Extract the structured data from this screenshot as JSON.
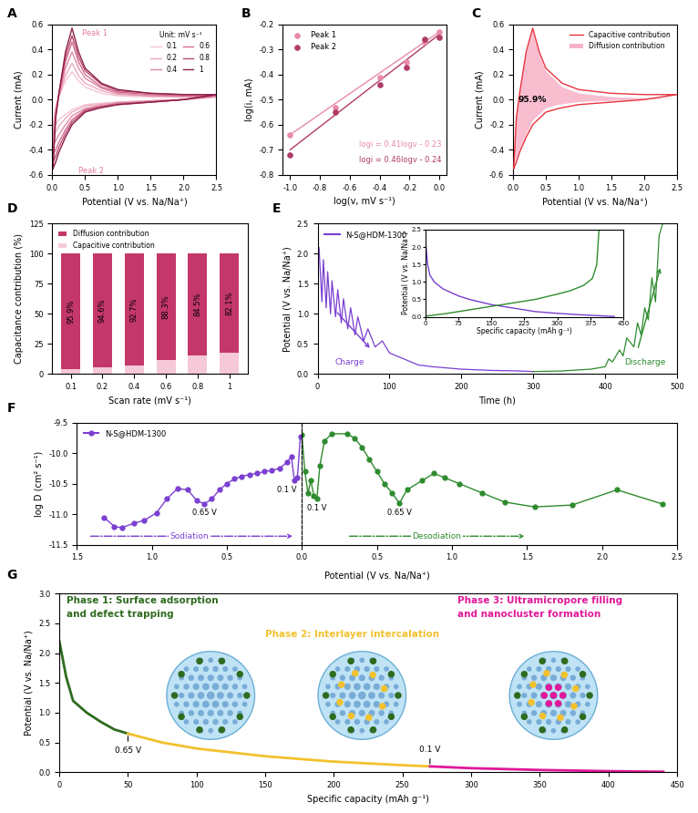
{
  "chart_data": [
    {
      "panel": "A",
      "type": "line",
      "xlabel": "Potential (V vs. Na/Na⁺)",
      "ylabel": "Current (mA)",
      "xlim": [
        0.0,
        2.5
      ],
      "xticks": [
        0.0,
        0.5,
        1.0,
        1.5,
        2.0,
        2.5
      ],
      "ylim": [
        -0.6,
        0.6
      ],
      "yticks": [
        -0.6,
        -0.4,
        -0.2,
        0.0,
        0.2,
        0.4,
        0.6
      ],
      "legend": "upper right",
      "legend_title": "Unit: mV s⁻¹",
      "x": [
        0.01,
        0.05,
        0.1,
        0.2,
        0.3,
        0.4,
        0.5,
        0.75,
        1.0,
        1.5,
        2.0,
        2.5,
        2.0,
        1.5,
        1.0,
        0.7,
        0.5,
        0.3,
        0.2,
        0.1,
        0.05,
        0.01
      ],
      "series": [
        {
          "name": "0.1",
          "color": "#f4c6d4",
          "values": [
            -0.21,
            -0.06,
            0.02,
            0.15,
            0.22,
            0.15,
            0.1,
            0.05,
            0.03,
            0.02,
            0.02,
            0.02,
            0.0,
            -0.01,
            -0.02,
            -0.03,
            -0.04,
            -0.08,
            -0.12,
            -0.16,
            -0.2,
            -0.21
          ]
        },
        {
          "name": "0.2",
          "color": "#eba8bd",
          "values": [
            -0.28,
            -0.08,
            0.03,
            0.19,
            0.29,
            0.19,
            0.13,
            0.07,
            0.04,
            0.03,
            0.02,
            0.02,
            0.0,
            -0.01,
            -0.02,
            -0.04,
            -0.05,
            -0.1,
            -0.15,
            -0.21,
            -0.26,
            -0.28
          ]
        },
        {
          "name": "0.4",
          "color": "#e08aa6",
          "values": [
            -0.36,
            -0.1,
            0.03,
            0.25,
            0.38,
            0.25,
            0.17,
            0.09,
            0.05,
            0.03,
            0.03,
            0.03,
            0.0,
            -0.01,
            -0.03,
            -0.05,
            -0.07,
            -0.13,
            -0.2,
            -0.28,
            -0.33,
            -0.36
          ]
        },
        {
          "name": "0.6",
          "color": "#d46b8f",
          "values": [
            -0.44,
            -0.12,
            0.04,
            0.3,
            0.46,
            0.3,
            0.2,
            0.1,
            0.06,
            0.04,
            0.03,
            0.03,
            0.0,
            -0.02,
            -0.03,
            -0.06,
            -0.08,
            -0.16,
            -0.24,
            -0.34,
            -0.4,
            -0.44
          ]
        },
        {
          "name": "0.8",
          "color": "#b84a72",
          "values": [
            -0.5,
            -0.14,
            0.05,
            0.34,
            0.51,
            0.34,
            0.23,
            0.12,
            0.07,
            0.05,
            0.04,
            0.04,
            0.0,
            -0.02,
            -0.04,
            -0.06,
            -0.09,
            -0.18,
            -0.27,
            -0.38,
            -0.45,
            -0.5
          ]
        },
        {
          "name": "1",
          "color": "#8b1e4b",
          "values": [
            -0.55,
            -0.15,
            0.05,
            0.38,
            0.57,
            0.38,
            0.25,
            0.13,
            0.08,
            0.05,
            0.04,
            0.04,
            0.0,
            -0.02,
            -0.04,
            -0.07,
            -0.1,
            -0.2,
            -0.3,
            -0.42,
            -0.5,
            -0.55
          ]
        }
      ],
      "annotations": [
        {
          "text": "Peak 1",
          "x": 0.3,
          "y": 0.57
        },
        {
          "text": "Peak 2",
          "x": 0.01,
          "y": -0.55
        }
      ]
    },
    {
      "panel": "B",
      "type": "scatter",
      "xlabel": "log(v, mV s⁻¹)",
      "ylabel": "log(i, mA)",
      "xlim": [
        -1.05,
        0.05
      ],
      "xticks": [
        -1.0,
        -0.8,
        -0.6,
        -0.4,
        -0.2,
        0.0
      ],
      "ylim": [
        -0.8,
        -0.2
      ],
      "yticks": [
        -0.8,
        -0.7,
        -0.6,
        -0.5,
        -0.4,
        -0.3,
        -0.2
      ],
      "legend": "upper left",
      "marker": "o",
      "x": [
        -1.0,
        -0.7,
        -0.4,
        -0.22,
        -0.1,
        0.0
      ],
      "series": [
        {
          "name": "Peak 1",
          "color": "#e88aa8",
          "values": [
            -0.64,
            -0.53,
            -0.41,
            -0.35,
            -0.27,
            -0.23
          ]
        },
        {
          "name": "Peak 2",
          "color": "#b03a68",
          "values": [
            -0.72,
            -0.55,
            -0.44,
            -0.37,
            -0.26,
            -0.25
          ]
        }
      ],
      "fits": [
        {
          "label": "logi = 0.41logv - 0.23",
          "color": "#e88aa8",
          "x": [
            -1.0,
            0.0
          ],
          "values": [
            -0.64,
            -0.23
          ]
        },
        {
          "label": "logi = 0.46logv - 0.24",
          "color": "#b03a68",
          "x": [
            -1.0,
            0.0
          ],
          "values": [
            -0.7,
            -0.24
          ]
        }
      ]
    },
    {
      "panel": "C",
      "type": "line",
      "xlabel": "Potential (V vs. Na/Na⁺)",
      "ylabel": "Current (mA)",
      "xlim": [
        0.0,
        2.5
      ],
      "xticks": [
        0.0,
        0.5,
        1.0,
        1.5,
        2.0,
        2.5
      ],
      "ylim": [
        -0.6,
        0.6
      ],
      "yticks": [
        -0.6,
        -0.4,
        -0.2,
        0.0,
        0.2,
        0.4,
        0.6
      ],
      "legend": "upper right",
      "area_label": "95.9%",
      "x": [
        0.01,
        0.05,
        0.1,
        0.2,
        0.3,
        0.4,
        0.5,
        0.75,
        1.0,
        1.5,
        2.0,
        2.5,
        2.0,
        1.5,
        1.0,
        0.7,
        0.5,
        0.3,
        0.2,
        0.1,
        0.05,
        0.01
      ],
      "series": [
        {
          "name": "Capacitive contribution",
          "type": "line",
          "color": "#e8323c",
          "values": [
            -0.55,
            -0.15,
            0.05,
            0.38,
            0.57,
            0.38,
            0.25,
            0.13,
            0.08,
            0.05,
            0.04,
            0.04,
            0.0,
            -0.02,
            -0.04,
            -0.07,
            -0.1,
            -0.2,
            -0.3,
            -0.42,
            -0.5,
            -0.55
          ]
        },
        {
          "name": "Diffusion contribution",
          "type": "area",
          "color": "#f7b3c8",
          "values": [
            -0.52,
            -0.13,
            0.04,
            0.36,
            0.55,
            0.36,
            0.23,
            0.1,
            0.05,
            0.02,
            0.01,
            0.01,
            0.0,
            -0.01,
            -0.02,
            -0.04,
            -0.07,
            -0.17,
            -0.28,
            -0.4,
            -0.48,
            -0.52
          ]
        }
      ]
    },
    {
      "panel": "D",
      "type": "bar",
      "stacked": true,
      "data_labels": true,
      "xlabel": "Scan rate (mV s⁻¹)",
      "ylabel": "Capacitance contribution (%)",
      "ylim": [
        0,
        125
      ],
      "yticks": [
        0,
        25,
        50,
        75,
        100,
        125
      ],
      "legend": "upper left",
      "categories": [
        "0.1",
        "0.2",
        "0.4",
        "0.6",
        "0.8",
        "1"
      ],
      "series": [
        {
          "name": "Capacitive contribution",
          "color": "#f6c9d8",
          "values": [
            4.1,
            5.4,
            7.3,
            11.7,
            15.5,
            17.9
          ]
        },
        {
          "name": "Diffusion contribution",
          "color": "#c4376a",
          "values": [
            95.9,
            94.6,
            92.7,
            88.3,
            84.5,
            82.1
          ],
          "value_labels": [
            "95.9%",
            "94.6%",
            "92.7%",
            "88.3%",
            "84.5%",
            "82.1%"
          ]
        }
      ]
    },
    {
      "panel": "E",
      "type": "line",
      "xlabel": "Time (h)",
      "ylabel": "Potential (V vs. Na/Na⁺)",
      "xlim": [
        0,
        500
      ],
      "xticks": [
        0,
        100,
        200,
        300,
        400,
        500
      ],
      "ylim": [
        0.0,
        2.5
      ],
      "yticks": [
        0.0,
        0.5,
        1.0,
        1.5,
        2.0,
        2.5
      ],
      "legend": "upper left",
      "legend_label": "N-S@HDM-1300",
      "series": [
        {
          "name": "Charge",
          "color": "#7a3fd1",
          "x": [
            2,
            6,
            8,
            12,
            14,
            18,
            20,
            25,
            28,
            33,
            36,
            42,
            46,
            52,
            56,
            64,
            70,
            80,
            90,
            100,
            120,
            140,
            160,
            200,
            240,
            280,
            300
          ],
          "values": [
            2.1,
            1.2,
            1.9,
            1.1,
            1.7,
            1.0,
            1.55,
            0.95,
            1.4,
            0.85,
            1.25,
            0.75,
            1.1,
            0.65,
            0.95,
            0.55,
            0.75,
            0.45,
            0.55,
            0.35,
            0.25,
            0.15,
            0.12,
            0.08,
            0.06,
            0.05,
            0.04
          ]
        },
        {
          "name": "Discharge",
          "color": "#2e8b2e",
          "x": [
            300,
            340,
            380,
            400,
            405,
            410,
            420,
            425,
            430,
            440,
            445,
            450,
            455,
            460,
            465,
            470,
            475,
            480
          ],
          "values": [
            0.04,
            0.05,
            0.08,
            0.12,
            0.25,
            0.2,
            0.4,
            0.3,
            0.6,
            0.45,
            0.85,
            0.65,
            1.1,
            0.9,
            1.6,
            1.2,
            2.3,
            2.5
          ]
        }
      ],
      "inset": {
        "type": "line",
        "xlabel": "Specific capacity (mAh g⁻¹)",
        "ylabel": "Potential (V vs. Na/Na⁺)",
        "xlim": [
          0,
          450
        ],
        "xticks": [
          0,
          75,
          150,
          225,
          300,
          375,
          450
        ],
        "ylim": [
          0.0,
          2.5
        ],
        "yticks": [
          0.0,
          0.5,
          1.0,
          1.5,
          2.0,
          2.5
        ],
        "series": [
          {
            "color": "#7a3fd1",
            "x": [
              0,
              5,
              10,
              20,
              40,
              75,
              100,
              150,
              200,
              250,
              300,
              350,
              400,
              430
            ],
            "values": [
              2.2,
              1.5,
              1.2,
              1.0,
              0.8,
              0.6,
              0.5,
              0.35,
              0.25,
              0.15,
              0.1,
              0.06,
              0.03,
              0.01
            ]
          },
          {
            "color": "#2e8b2e",
            "x": [
              0,
              20,
              50,
              100,
              150,
              200,
              250,
              300,
              330,
              360,
              380,
              390,
              395
            ],
            "values": [
              0.02,
              0.05,
              0.1,
              0.2,
              0.3,
              0.4,
              0.5,
              0.65,
              0.75,
              0.9,
              1.1,
              1.5,
              2.5
            ]
          }
        ]
      }
    },
    {
      "panel": "F",
      "type": "line",
      "marker": "o",
      "xlabel": "Potential (V vs. Na/Na⁺)",
      "ylabel": "log D (cm² s⁻¹)",
      "ylim": [
        -11.5,
        -9.5
      ],
      "yticks": [
        -11.5,
        -11.0,
        -10.5,
        -10.0,
        -9.5
      ],
      "legend": "upper left",
      "legend_label": "N-S@HDM-1300",
      "series": [
        {
          "name": "Sodiation",
          "color": "#7a3fd1",
          "xlim": [
            1.5,
            0.0
          ],
          "xticks": [
            1.5,
            1.0,
            0.5,
            0.0
          ],
          "x": [
            1.32,
            1.25,
            1.2,
            1.12,
            1.05,
            0.97,
            0.9,
            0.83,
            0.76,
            0.7,
            0.65,
            0.6,
            0.55,
            0.5,
            0.45,
            0.4,
            0.35,
            0.3,
            0.25,
            0.2,
            0.15,
            0.1,
            0.07,
            0.05,
            0.03,
            0.01
          ],
          "values": [
            -11.05,
            -11.2,
            -11.22,
            -11.15,
            -11.1,
            -10.98,
            -10.75,
            -10.58,
            -10.6,
            -10.78,
            -10.83,
            -10.75,
            -10.6,
            -10.5,
            -10.42,
            -10.38,
            -10.35,
            -10.33,
            -10.3,
            -10.28,
            -10.25,
            -10.15,
            -10.05,
            -10.45,
            -10.4,
            -9.72
          ],
          "annotations": [
            {
              "text": "0.65 V",
              "x": 0.65
            },
            {
              "text": "0.1 V",
              "x": 0.1
            }
          ]
        },
        {
          "name": "Desodiation",
          "color": "#2e8b2e",
          "xlim": [
            0.0,
            2.5
          ],
          "xticks": [
            0.5,
            1.0,
            1.5,
            2.0,
            2.5
          ],
          "x": [
            0.0,
            0.02,
            0.04,
            0.06,
            0.08,
            0.1,
            0.12,
            0.15,
            0.2,
            0.3,
            0.35,
            0.4,
            0.45,
            0.5,
            0.55,
            0.6,
            0.65,
            0.7,
            0.8,
            0.88,
            0.95,
            1.05,
            1.2,
            1.35,
            1.55,
            1.8,
            2.1,
            2.4
          ],
          "values": [
            -9.7,
            -10.3,
            -10.65,
            -10.45,
            -10.7,
            -10.75,
            -10.2,
            -9.8,
            -9.68,
            -9.68,
            -9.75,
            -9.9,
            -10.1,
            -10.3,
            -10.5,
            -10.65,
            -10.82,
            -10.6,
            -10.45,
            -10.33,
            -10.4,
            -10.5,
            -10.65,
            -10.8,
            -10.88,
            -10.85,
            -10.6,
            -10.83
          ],
          "annotations": [
            {
              "text": "0.1 V",
              "x": 0.1
            },
            {
              "text": "0.65 V",
              "x": 0.65
            }
          ]
        }
      ]
    },
    {
      "panel": "G",
      "type": "line",
      "xlabel": "Specific capacity (mAh g⁻¹)",
      "ylabel": "Potential (V vs. Na/Na⁺)",
      "xlim": [
        0,
        450
      ],
      "xticks": [
        0,
        50,
        100,
        150,
        200,
        250,
        300,
        350,
        400,
        450
      ],
      "ylim": [
        0.0,
        3.0
      ],
      "yticks": [
        0.0,
        0.5,
        1.0,
        1.5,
        2.0,
        2.5,
        3.0
      ],
      "series": [
        {
          "name": "Phase 1: Surface adsorption\nand defect trapping",
          "color": "#2e6b1f",
          "x": [
            0,
            5,
            10,
            20,
            30,
            40,
            50
          ],
          "values": [
            2.2,
            1.6,
            1.2,
            1.0,
            0.85,
            0.72,
            0.65
          ]
        },
        {
          "name": "Phase 2: Interlayer intercalation",
          "color": "#f2c12e",
          "x": [
            50,
            75,
            100,
            150,
            200,
            250,
            270
          ],
          "values": [
            0.65,
            0.5,
            0.4,
            0.27,
            0.18,
            0.12,
            0.1
          ]
        },
        {
          "name": "Phase 3: Ultramicropore filling\nand nanocluster formation",
          "color": "#e0189a",
          "x": [
            270,
            300,
            350,
            400,
            440
          ],
          "values": [
            0.1,
            0.07,
            0.04,
            0.02,
            0.01
          ]
        }
      ],
      "annotations": [
        {
          "text": "0.65 V",
          "x": 50,
          "y": 0.65
        },
        {
          "text": "0.1 V",
          "x": 270,
          "y": 0.1
        }
      ]
    }
  ]
}
